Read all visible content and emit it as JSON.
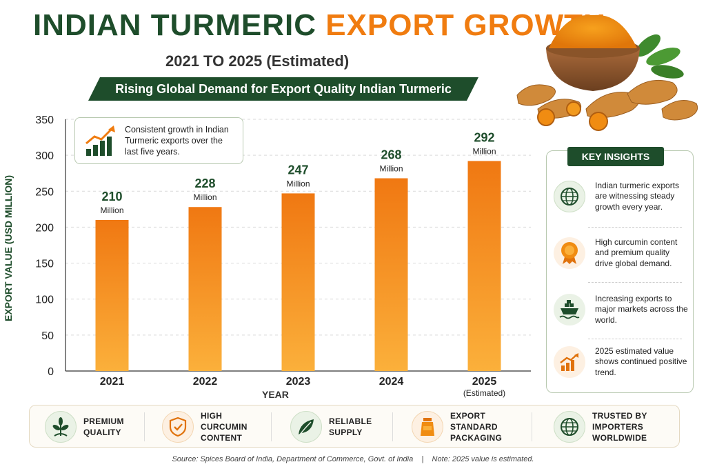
{
  "header": {
    "title_part1": "INDIAN TURMERIC",
    "title_part2": "EXPORT GROWTH",
    "subtitle": "2021 TO 2025 (Estimated)",
    "banner": "Rising Global Demand for Export Quality Indian Turmeric"
  },
  "colors": {
    "brand_green": "#1e4d2b",
    "accent_orange": "#f07c10",
    "bar_top": "#f07812",
    "bar_bottom": "#fbb03b"
  },
  "chart_data": {
    "type": "bar",
    "categories": [
      "2021",
      "2022",
      "2023",
      "2024",
      "2025"
    ],
    "category_notes": [
      "",
      "",
      "",
      "",
      "(Estimated)"
    ],
    "values": [
      210,
      228,
      247,
      268,
      292
    ],
    "value_labels": [
      "210",
      "228",
      "247",
      "268",
      "292"
    ],
    "value_unit": "Million",
    "ylabel": "EXPORT VALUE (USD MILLION)",
    "xlabel": "YEAR",
    "ylim": [
      0,
      350
    ],
    "yticks": [
      0,
      50,
      100,
      150,
      200,
      250,
      300,
      350
    ],
    "grid": true
  },
  "callout": {
    "text": "Consistent growth in Indian Turmeric exports over the last five years.",
    "icon": "growth-chart-icon"
  },
  "insights": {
    "title": "KEY INSIGHTS",
    "items": [
      {
        "icon": "globe-icon",
        "text": "Indian turmeric exports are witnessing steady growth every year."
      },
      {
        "icon": "award-badge-icon",
        "text": "High curcumin content and premium quality drive global demand."
      },
      {
        "icon": "ship-icon",
        "text": "Increasing exports to major markets across the world."
      },
      {
        "icon": "trend-up-icon",
        "text": "2025 estimated value shows continued positive trend."
      }
    ]
  },
  "features": [
    {
      "icon": "plant-icon",
      "label": "PREMIUM QUALITY"
    },
    {
      "icon": "shield-check-icon",
      "label": "HIGH CURCUMIN CONTENT"
    },
    {
      "icon": "leaf-icon",
      "label": "RELIABLE SUPPLY"
    },
    {
      "icon": "package-icon",
      "label": "EXPORT STANDARD PACKAGING"
    },
    {
      "icon": "globe-icon",
      "label": "TRUSTED BY IMPORTERS WORLDWIDE"
    }
  ],
  "footer": {
    "source": "Source: Spices Board of India, Department of Commerce, Govt. of India",
    "separator": "|",
    "note": "Note: 2025 value is estimated."
  }
}
